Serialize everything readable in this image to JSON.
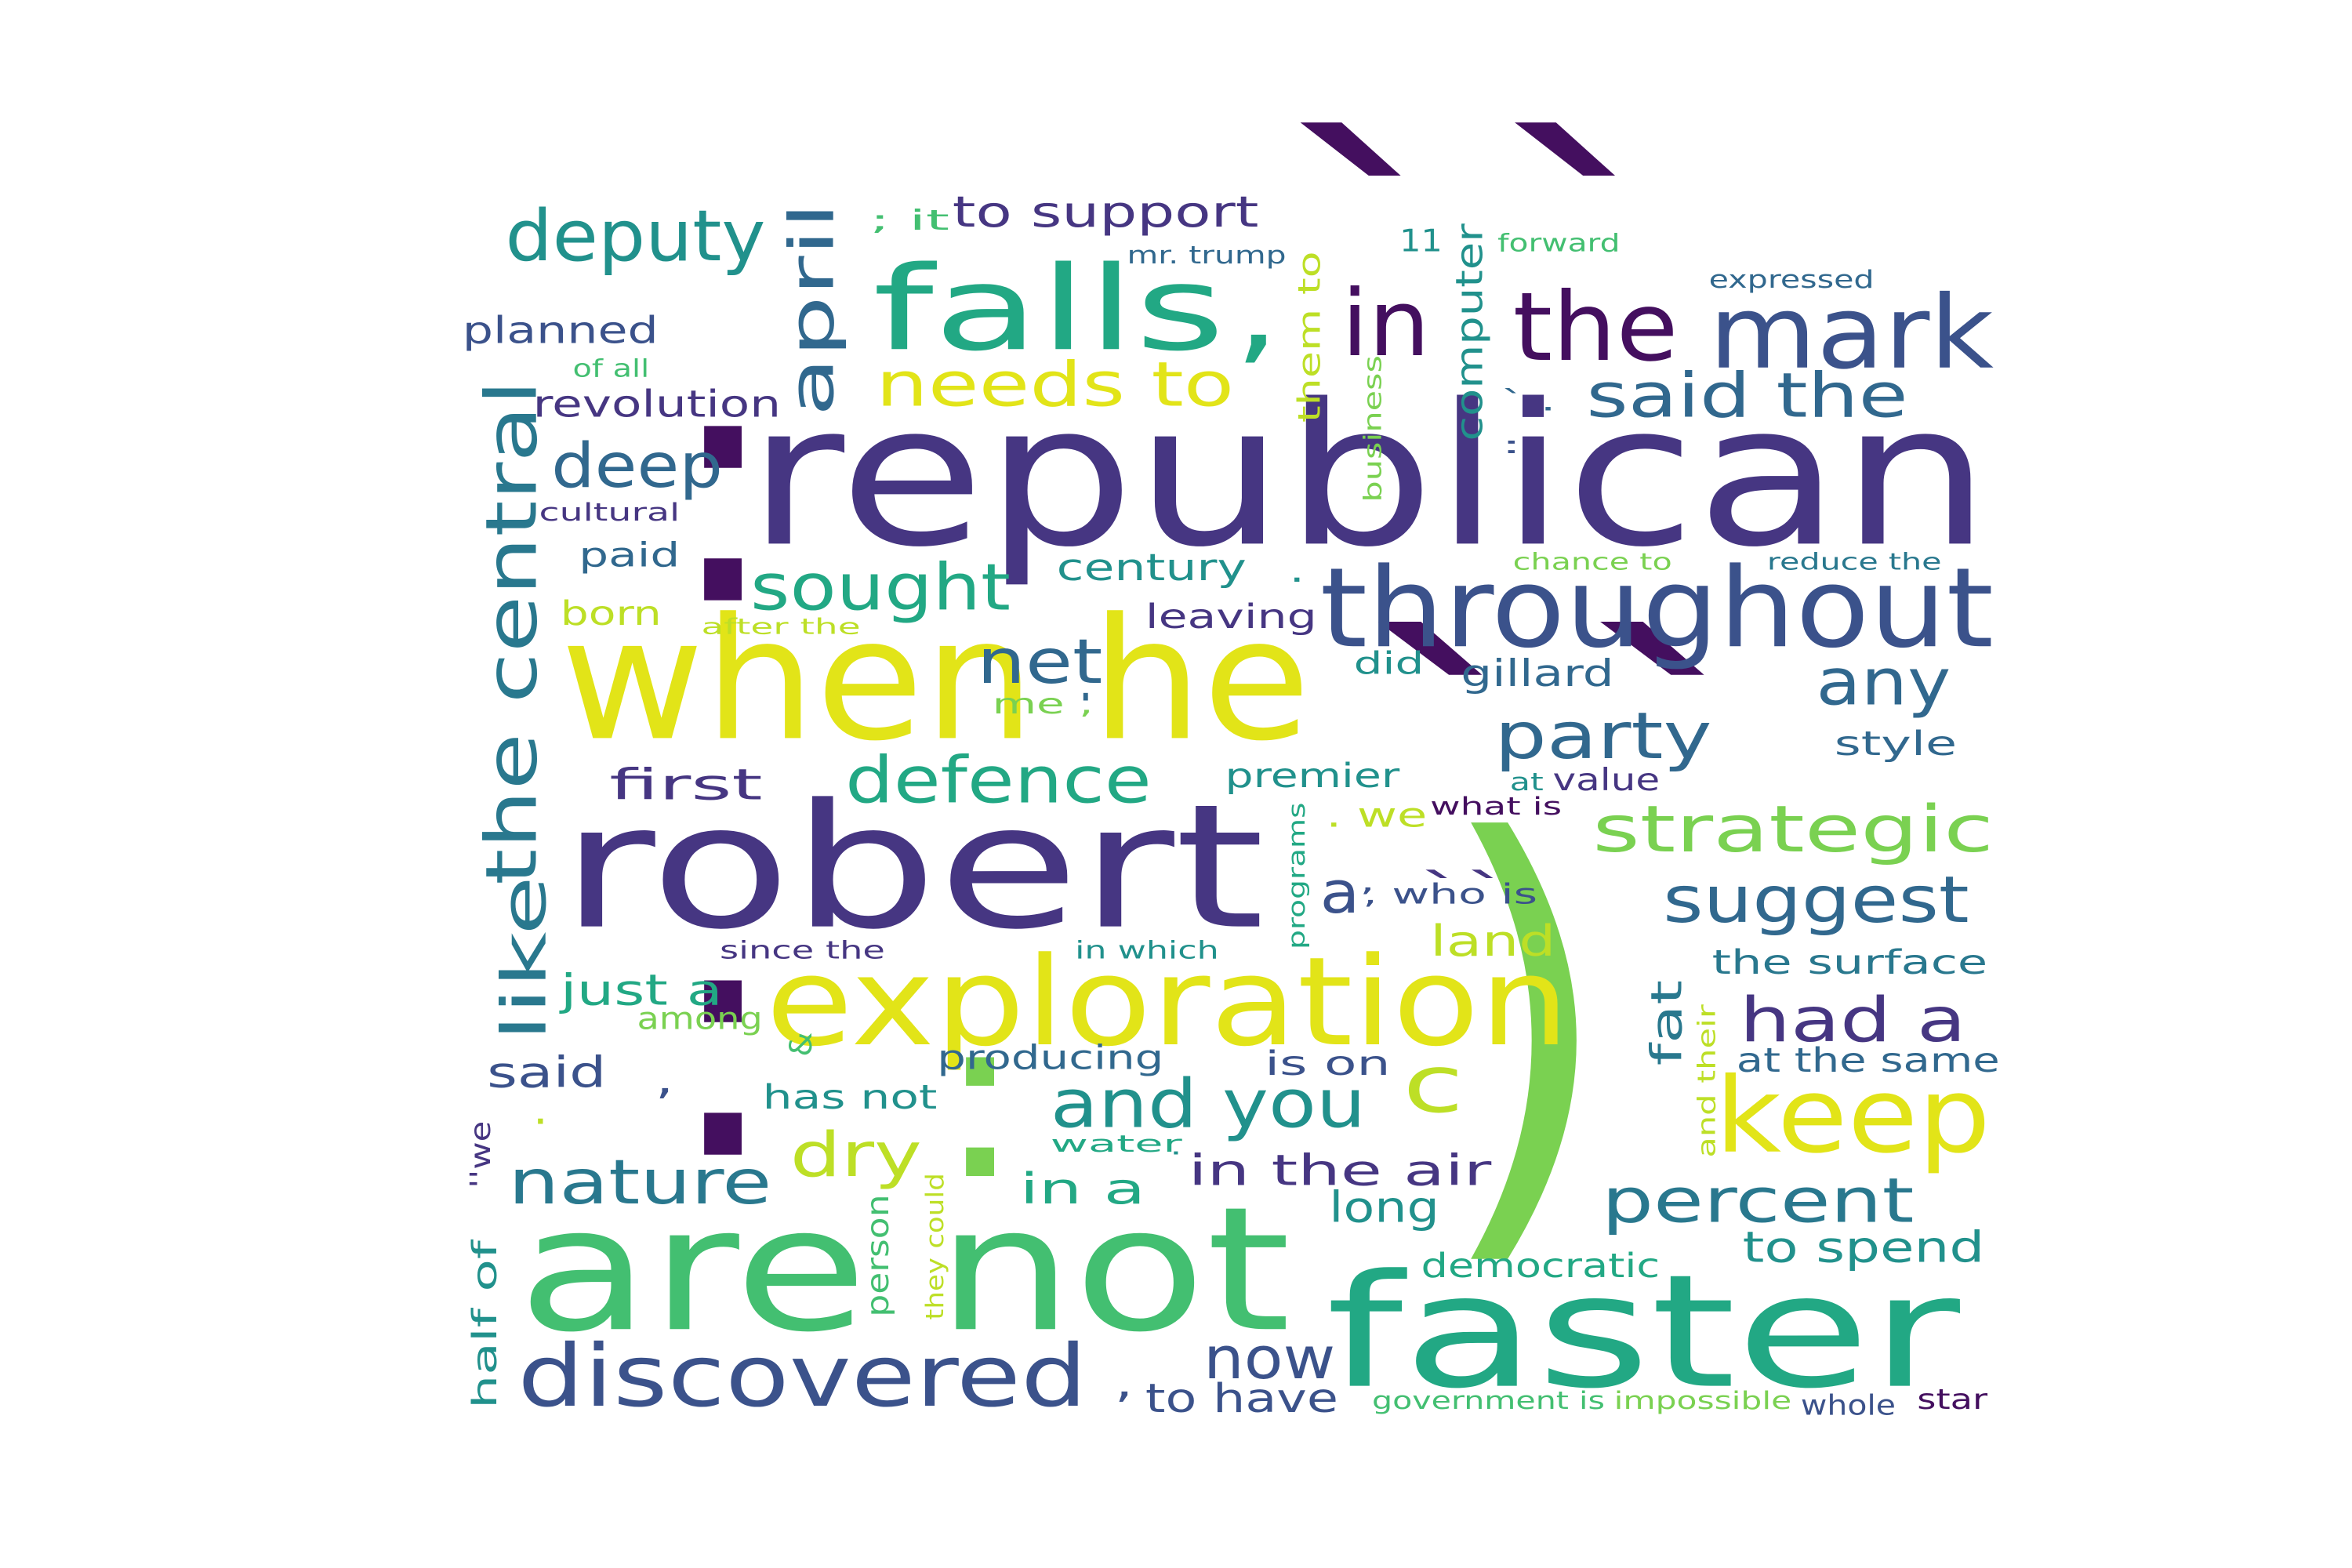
{
  "palette": {
    "dark_purple": "#440f5f",
    "indigo": "#463682",
    "slate_blue": "#3b528b",
    "steel_blue": "#31688e",
    "teal_blue": "#29788e",
    "teal": "#21918c",
    "green_teal": "#22a884",
    "green": "#43bf71",
    "light_green": "#7ad151",
    "yellow_green": "#bddf26",
    "yellow": "#e2e418"
  },
  "words": [
    {
      "text": "republican"
    },
    {
      "text": "robert"
    },
    {
      "text": "when he"
    },
    {
      "text": "are not"
    },
    {
      "text": "faster"
    },
    {
      "text": "exploration"
    },
    {
      "text": "falls"
    },
    {
      "text": ","
    },
    {
      "text": "mark"
    },
    {
      "text": "the"
    },
    {
      "text": "throughout"
    },
    {
      "text": "in"
    },
    {
      "text": "keep"
    },
    {
      "text": "discovered"
    },
    {
      "text": "the central"
    },
    {
      "text": "deputy"
    },
    {
      "text": "april"
    },
    {
      "text": "needs to"
    },
    {
      "text": "sought"
    },
    {
      "text": "deep"
    },
    {
      "text": "net"
    },
    {
      "text": "said the"
    },
    {
      "text": "strategic"
    },
    {
      "text": "suggest"
    },
    {
      "text": "defence"
    },
    {
      "text": "party"
    },
    {
      "text": "any"
    },
    {
      "text": "nature"
    },
    {
      "text": "percent"
    },
    {
      "text": "and you"
    },
    {
      "text": "had a"
    },
    {
      "text": "c"
    },
    {
      "text": "like"
    },
    {
      "text": "dry"
    },
    {
      "text": "now"
    },
    {
      "text": "to support"
    },
    {
      "text": "planned"
    },
    {
      "text": "revolution"
    },
    {
      "text": "said"
    },
    {
      "text": "first"
    },
    {
      "text": "a"
    },
    {
      "text": "just a"
    },
    {
      "text": "land"
    },
    {
      "text": "in a"
    },
    {
      "text": "in the air"
    },
    {
      "text": "to spend"
    },
    {
      "text": "to have"
    },
    {
      "text": "long"
    },
    {
      "text": "democratic"
    },
    {
      "text": "fat"
    },
    {
      "text": "computer"
    },
    {
      "text": "century"
    },
    {
      "text": "leaving"
    },
    {
      "text": "gillard"
    },
    {
      "text": "style"
    },
    {
      "text": "premier"
    },
    {
      "text": "producing"
    },
    {
      "text": "is on"
    },
    {
      "text": "at the same"
    },
    {
      "text": "the surface"
    },
    {
      "text": "paid"
    },
    {
      "text": "born"
    },
    {
      "text": "has not"
    },
    {
      "text": "among"
    },
    {
      "text": "half of"
    },
    {
      "text": "person"
    },
    {
      "text": "them to"
    },
    {
      "text": "value"
    },
    {
      "text": "whole"
    },
    {
      "text": "star"
    },
    {
      "text": "impossible"
    },
    {
      "text": "government is"
    },
    {
      "text": "did"
    },
    {
      "text": "11"
    },
    {
      "text": "forward"
    },
    {
      "text": "expressed"
    },
    {
      "text": "mr. trump"
    },
    {
      "text": "; it"
    },
    {
      "text": "of all"
    },
    {
      "text": "cultural"
    },
    {
      "text": "after the"
    },
    {
      "text": "chance to"
    },
    {
      "text": "reduce the"
    },
    {
      "text": "business"
    },
    {
      "text": "me ,"
    },
    {
      "text": ". we"
    },
    {
      "text": "what is"
    },
    {
      "text": "at"
    },
    {
      "text": ", who is"
    },
    {
      "text": "programs"
    },
    {
      "text": "since the"
    },
    {
      "text": "in which"
    },
    {
      "text": "water"
    },
    {
      "text": "they could"
    },
    {
      "text": "&"
    },
    {
      "text": "and their"
    },
    {
      "text": "''we"
    },
    {
      "text": "``"
    },
    {
      "text": ","
    },
    {
      "text": "."
    },
    {
      "text": ","
    },
    {
      "text": "."
    },
    {
      "text": "'"
    },
    {
      "text": ","
    },
    {
      "text": "."
    },
    {
      "text": "` ."
    },
    {
      "text": ":"
    }
  ],
  "glyphs": [
    {
      "text": ":",
      "color": "dark_purple"
    },
    {
      "text": ":",
      "color": "dark_purple"
    },
    {
      "text": ":",
      "color": "light_green"
    },
    {
      "text": "``",
      "color": "dark_purple"
    },
    {
      "text": "``",
      "color": "dark_purple"
    },
    {
      "text": ")",
      "color": "light_green"
    }
  ]
}
